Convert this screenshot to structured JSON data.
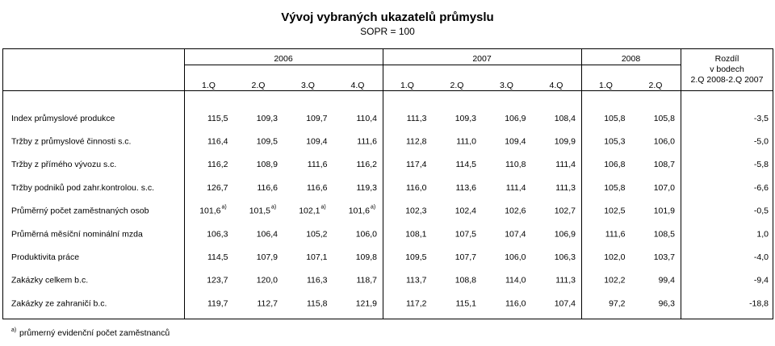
{
  "header": {
    "title": "Vývoj vybraných ukazatelů průmyslu",
    "subtitle": "SOPR = 100"
  },
  "table": {
    "years": [
      {
        "label": "2006",
        "quarters": [
          "1.Q",
          "2.Q",
          "3.Q",
          "4.Q"
        ]
      },
      {
        "label": "2007",
        "quarters": [
          "1.Q",
          "2.Q",
          "3.Q",
          "4.Q"
        ]
      },
      {
        "label": "2008",
        "quarters": [
          "1.Q",
          "2.Q"
        ]
      }
    ],
    "diff_header": [
      "Rozdíl",
      "v bodech",
      "2.Q 2008-2.Q 2007"
    ],
    "rows": [
      {
        "label": "Index průmyslové produkce",
        "cells": [
          "115,5",
          "109,3",
          "109,7",
          "110,4",
          "111,3",
          "109,3",
          "106,9",
          "108,4",
          "105,8",
          "105,8",
          "-3,5"
        ]
      },
      {
        "label": "Tržby z průmyslové činnosti s.c.",
        "cells": [
          "116,4",
          "109,5",
          "109,4",
          "111,6",
          "112,8",
          "111,0",
          "109,4",
          "109,9",
          "105,3",
          "106,0",
          "-5,0"
        ]
      },
      {
        "label": "Tržby z přímého vývozu s.c.",
        "cells": [
          "116,2",
          "108,9",
          "111,6",
          "116,2",
          "117,4",
          "114,5",
          "110,8",
          "111,4",
          "106,8",
          "108,7",
          "-5,8"
        ]
      },
      {
        "label": "Tržby podniků pod zahr.kontrolou. s.c.",
        "cells": [
          "126,7",
          "116,6",
          "116,6",
          "119,3",
          "116,0",
          "113,6",
          "111,4",
          "111,3",
          "105,8",
          "107,0",
          "-6,6"
        ]
      },
      {
        "label": "Průměrný počet zaměstnaných osob",
        "cells": [
          {
            "text": "101,6",
            "sup": "a)"
          },
          {
            "text": "101,5",
            "sup": "a)"
          },
          {
            "text": "102,1",
            "sup": "a)"
          },
          {
            "text": "101,6",
            "sup": "a)"
          },
          "102,3",
          "102,4",
          "102,6",
          "102,7",
          "102,5",
          "101,9",
          "-0,5"
        ]
      },
      {
        "label": "Průměrná měsíční nominální mzda",
        "cells": [
          "106,3",
          "106,4",
          "105,2",
          "106,0",
          "108,1",
          "107,5",
          "107,4",
          "106,9",
          "111,6",
          "108,5",
          "1,0"
        ]
      },
      {
        "label": "Produktivita práce",
        "cells": [
          "114,5",
          "107,9",
          "107,1",
          "109,8",
          "109,5",
          "107,7",
          "106,0",
          "106,3",
          "102,0",
          "103,7",
          "-4,0"
        ]
      },
      {
        "label": "Zakázky celkem b.c.",
        "cells": [
          "123,7",
          "120,0",
          "116,3",
          "118,7",
          "113,7",
          "108,8",
          "114,0",
          "111,3",
          "102,2",
          "99,4",
          "-9,4"
        ]
      },
      {
        "label": "Zakázky ze zahraničí b.c.",
        "cells": [
          "119,7",
          "112,7",
          "115,8",
          "121,9",
          "117,2",
          "115,1",
          "116,0",
          "107,4",
          "97,2",
          "96,3",
          "-18,8"
        ]
      }
    ]
  },
  "footnote": {
    "mark": "a)",
    "text": "průmerný evidenční počet zaměstnanců"
  }
}
